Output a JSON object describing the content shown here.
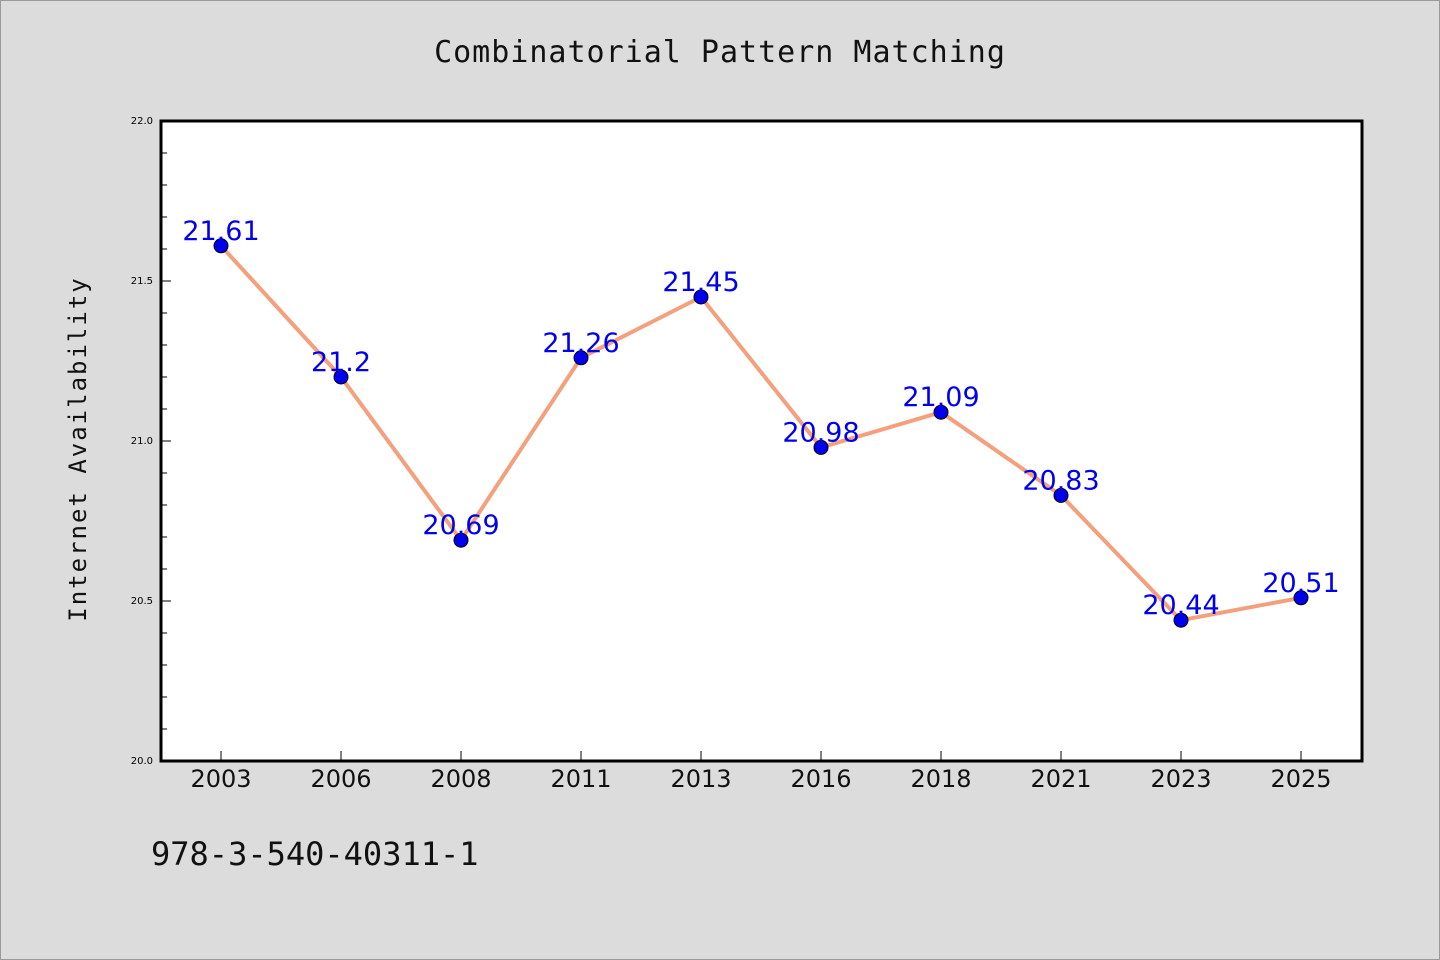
{
  "chart_data": {
    "type": "line",
    "title": "Combinatorial Pattern Matching",
    "xlabel": "",
    "ylabel": "Internet Availability",
    "categories": [
      "2003",
      "2006",
      "2008",
      "2011",
      "2013",
      "2016",
      "2018",
      "2021",
      "2023",
      "2025"
    ],
    "series": [
      {
        "values": [
          21.61,
          21.2,
          20.69,
          21.26,
          21.45,
          20.98,
          21.09,
          20.83,
          20.44,
          20.51
        ],
        "data_labels": [
          "21.61",
          "21.2",
          "20.69",
          "21.26",
          "21.45",
          "20.98",
          "21.09",
          "20.83",
          "20.44",
          "20.51"
        ],
        "line_color": "#f4a07c",
        "marker_color": "#0000ee",
        "label_color": "#0000ee"
      }
    ],
    "ylim": [
      20.0,
      22.0
    ],
    "yticks": [
      "20.0",
      "20.5",
      "21.0",
      "21.5",
      "22.0"
    ],
    "grid": false,
    "legend": "none"
  },
  "footer": {
    "code": "978-3-540-40311-1"
  }
}
